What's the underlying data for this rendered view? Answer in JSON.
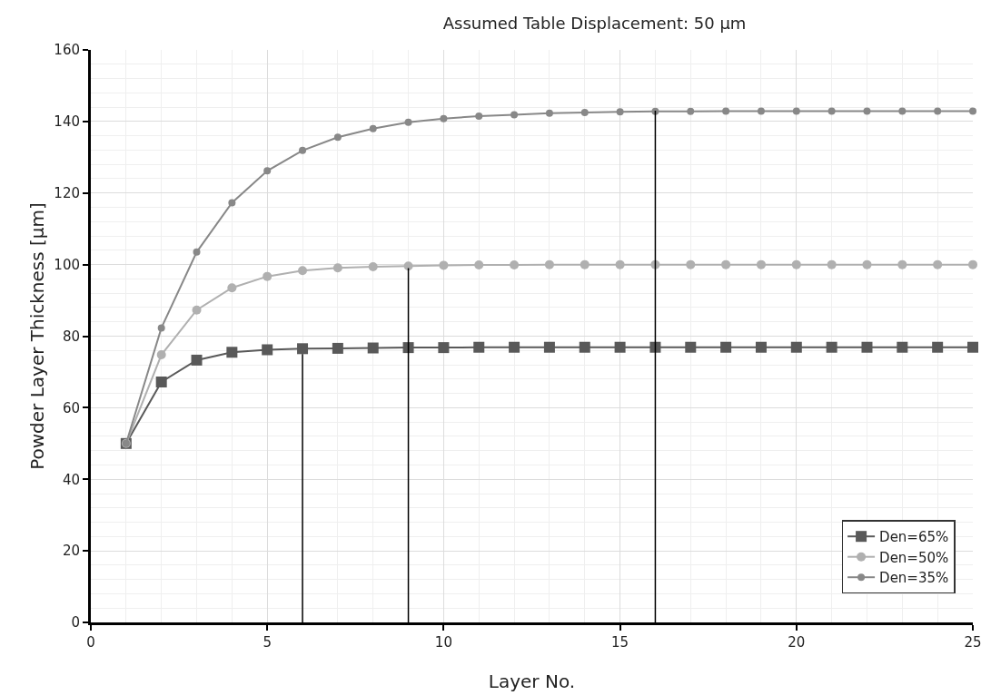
{
  "chart_data": {
    "type": "line",
    "title": "Assumed Table Displacement: 50 μm",
    "xlabel": "Layer No.",
    "ylabel": "Powder Layer Thickness [μm]",
    "x": [
      1,
      2,
      3,
      4,
      5,
      6,
      7,
      8,
      9,
      10,
      11,
      12,
      13,
      14,
      15,
      16,
      17,
      18,
      19,
      20,
      21,
      22,
      23,
      24,
      25
    ],
    "series": [
      {
        "name": "Den=65%",
        "color": "#595959",
        "marker": "square",
        "values": [
          50,
          67.2,
          73.3,
          75.5,
          76.2,
          76.5,
          76.6,
          76.7,
          76.8,
          76.8,
          76.9,
          76.9,
          76.9,
          76.9,
          76.9,
          76.9,
          76.9,
          76.9,
          76.9,
          76.9,
          76.9,
          76.9,
          76.9,
          76.9,
          76.9
        ]
      },
      {
        "name": "Den=50%",
        "color": "#b0b0b0",
        "marker": "circle",
        "values": [
          50,
          74.8,
          87.3,
          93.5,
          96.7,
          98.3,
          99.1,
          99.4,
          99.6,
          99.8,
          99.9,
          99.9,
          100,
          100,
          100,
          100,
          100,
          100,
          100,
          100,
          100,
          100,
          100,
          100,
          100
        ]
      },
      {
        "name": "Den=35%",
        "color": "#888888",
        "marker": "circle",
        "values": [
          50,
          82.3,
          103.5,
          117.3,
          126.2,
          131.9,
          135.6,
          138,
          139.8,
          140.8,
          141.5,
          141.9,
          142.3,
          142.5,
          142.7,
          142.8,
          142.8,
          142.9,
          142.9,
          142.9,
          142.9,
          142.9,
          142.9,
          142.9,
          142.9
        ]
      },
      {
        "color": "#000000",
        "marker": "none",
        "x": [
          6,
          6
        ],
        "values": [
          0,
          75
        ]
      },
      {
        "color": "#000000",
        "marker": "none",
        "x": [
          9,
          9
        ],
        "values": [
          0,
          99
        ]
      },
      {
        "color": "#000000",
        "marker": "none",
        "x": [
          16,
          16
        ],
        "values": [
          0,
          143
        ]
      }
    ],
    "xlim": [
      0,
      25
    ],
    "xticks": [
      0,
      5,
      10,
      15,
      20,
      25
    ],
    "ylim": [
      0,
      160
    ],
    "yticks": [
      0,
      20,
      40,
      60,
      80,
      100,
      120,
      140,
      160
    ],
    "grid": true,
    "legend": "bottom right",
    "line_style": "solid"
  }
}
